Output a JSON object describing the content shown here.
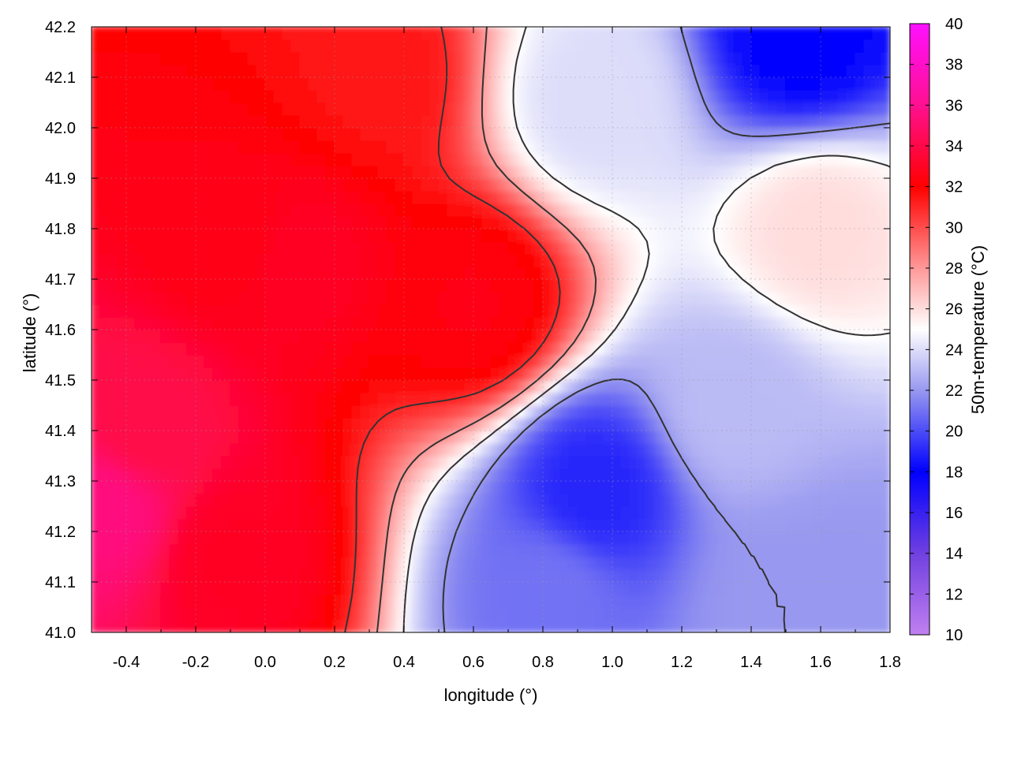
{
  "chart_data": {
    "type": "heatmap",
    "xlabel": "longitude (°)",
    "ylabel": "latitude (°)",
    "colorbar_label": "50m-temperature (°C)",
    "xlim": [
      -0.5,
      1.8
    ],
    "ylim": [
      41.0,
      42.2
    ],
    "x_ticks": [
      -0.4,
      -0.2,
      0.0,
      0.2,
      0.4,
      0.6,
      0.8,
      1.0,
      1.2,
      1.4,
      1.6,
      1.8
    ],
    "x_tick_labels": [
      "-0.4",
      "-0.2",
      "0.0",
      "0.2",
      "0.4",
      "0.6",
      "0.8",
      "1.0",
      "1.2",
      "1.4",
      "1.6",
      "1.8"
    ],
    "y_ticks": [
      41.0,
      41.1,
      41.2,
      41.3,
      41.4,
      41.5,
      41.6,
      41.7,
      41.8,
      41.9,
      42.0,
      42.1,
      42.2
    ],
    "y_tick_labels": [
      "41.0",
      "41.1",
      "41.2",
      "41.3",
      "41.4",
      "41.5",
      "41.6",
      "41.7",
      "41.8",
      "41.9",
      "42.0",
      "42.1",
      "42.2"
    ],
    "color_range": [
      10,
      40
    ],
    "colorbar_ticks": [
      10,
      12,
      14,
      16,
      18,
      20,
      22,
      24,
      26,
      28,
      30,
      32,
      34,
      36,
      38,
      40
    ],
    "colorbar_tick_labels": [
      "10",
      "12",
      "14",
      "16",
      "18",
      "20",
      "22",
      "24",
      "26",
      "28",
      "30",
      "32",
      "34",
      "36",
      "38",
      "40"
    ],
    "colormap": [
      {
        "value": 10,
        "color": "#c080f0"
      },
      {
        "value": 14,
        "color": "#7040e0"
      },
      {
        "value": 18,
        "color": "#0000ff"
      },
      {
        "value": 22,
        "color": "#9898f0"
      },
      {
        "value": 25,
        "color": "#ffffff"
      },
      {
        "value": 28,
        "color": "#ff9898"
      },
      {
        "value": 32,
        "color": "#ff0000"
      },
      {
        "value": 36,
        "color": "#ff1090"
      },
      {
        "value": 40,
        "color": "#ff10ff"
      }
    ],
    "grid": true,
    "contours": true,
    "field_features": [
      {
        "lon": -0.45,
        "lat": 41.25,
        "temp": 35.5
      },
      {
        "lon": -0.35,
        "lat": 41.4,
        "temp": 34
      },
      {
        "lon": -0.1,
        "lat": 41.15,
        "temp": 33
      },
      {
        "lon": 0.1,
        "lat": 41.75,
        "temp": 33
      },
      {
        "lon": -0.1,
        "lat": 41.8,
        "temp": 32.5
      },
      {
        "lon": 0.6,
        "lat": 41.65,
        "temp": 32.5
      },
      {
        "lon": 0.3,
        "lat": 42.1,
        "temp": 31.5
      },
      {
        "lon": 0.95,
        "lat": 41.28,
        "temp": 19
      },
      {
        "lon": 0.82,
        "lat": 41.08,
        "temp": 21
      },
      {
        "lon": 1.5,
        "lat": 41.05,
        "temp": 22
      },
      {
        "lon": 1.65,
        "lat": 41.08,
        "temp": 22
      },
      {
        "lon": 1.55,
        "lat": 42.18,
        "temp": 18
      },
      {
        "lon": 1.35,
        "lat": 41.45,
        "temp": 23
      },
      {
        "lon": 0.95,
        "lat": 42.05,
        "temp": 24
      },
      {
        "lon": 1.6,
        "lat": 41.8,
        "temp": 26
      }
    ]
  }
}
